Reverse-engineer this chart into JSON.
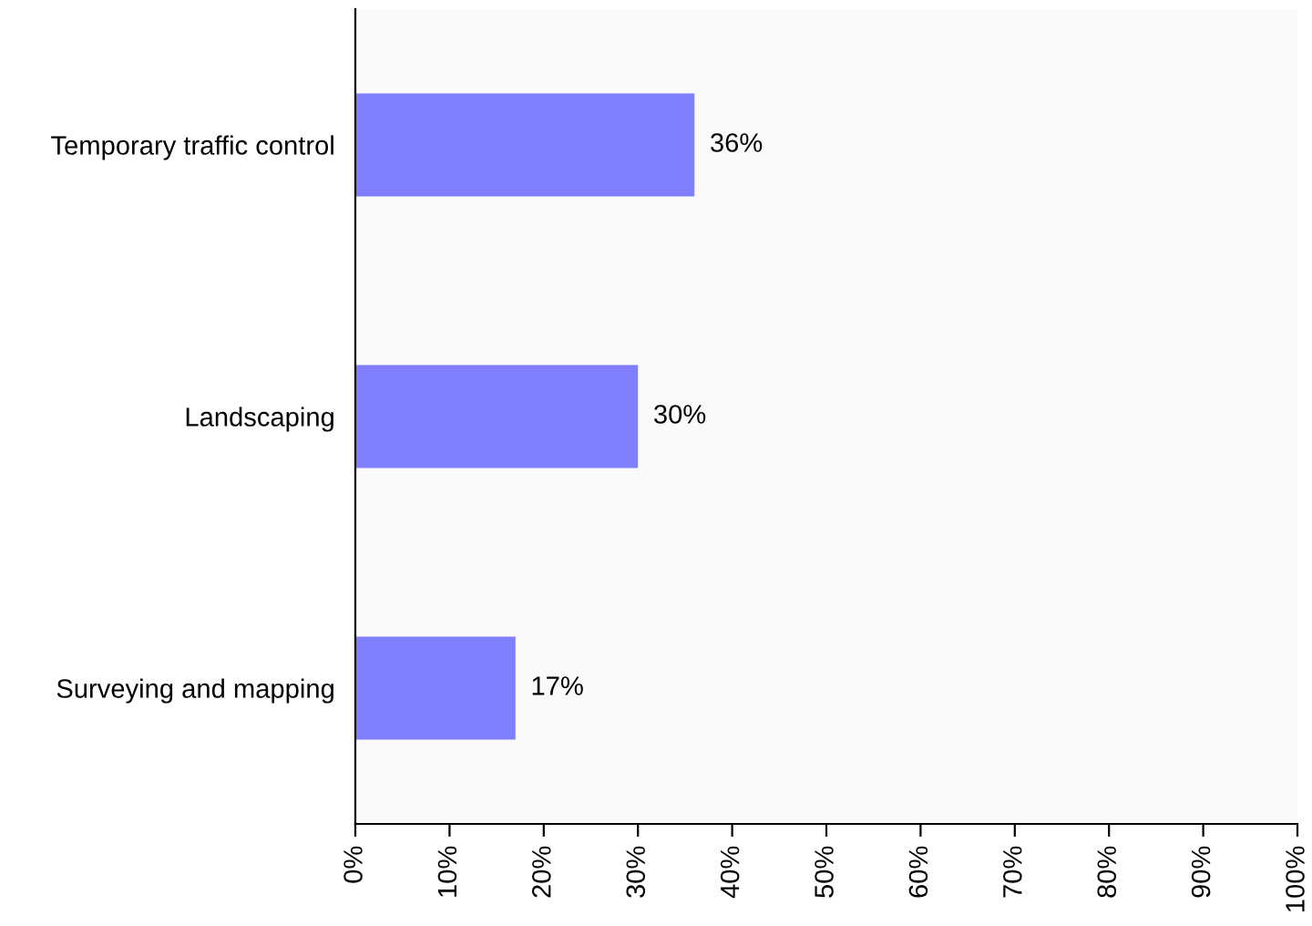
{
  "chart_data": {
    "type": "bar",
    "orientation": "horizontal",
    "categories": [
      "Temporary traffic control",
      "Landscaping",
      "Surveying and mapping"
    ],
    "values": [
      36,
      30,
      17
    ],
    "color": "#8080ff",
    "value_labels": [
      "36%",
      "30%",
      "17%"
    ],
    "xlim": [
      0,
      100
    ],
    "xticks": [
      {
        "value": 0,
        "label": "0%"
      },
      {
        "value": 10,
        "label": "10%"
      },
      {
        "value": 20,
        "label": "20%"
      },
      {
        "value": 30,
        "label": "30%"
      },
      {
        "value": 40,
        "label": "40%"
      },
      {
        "value": 50,
        "label": "50%"
      },
      {
        "value": 60,
        "label": "60%"
      },
      {
        "value": 70,
        "label": "70%"
      },
      {
        "value": 80,
        "label": "80%"
      },
      {
        "value": 90,
        "label": "90%"
      },
      {
        "value": 100,
        "label": "100%"
      }
    ],
    "grid": false
  }
}
